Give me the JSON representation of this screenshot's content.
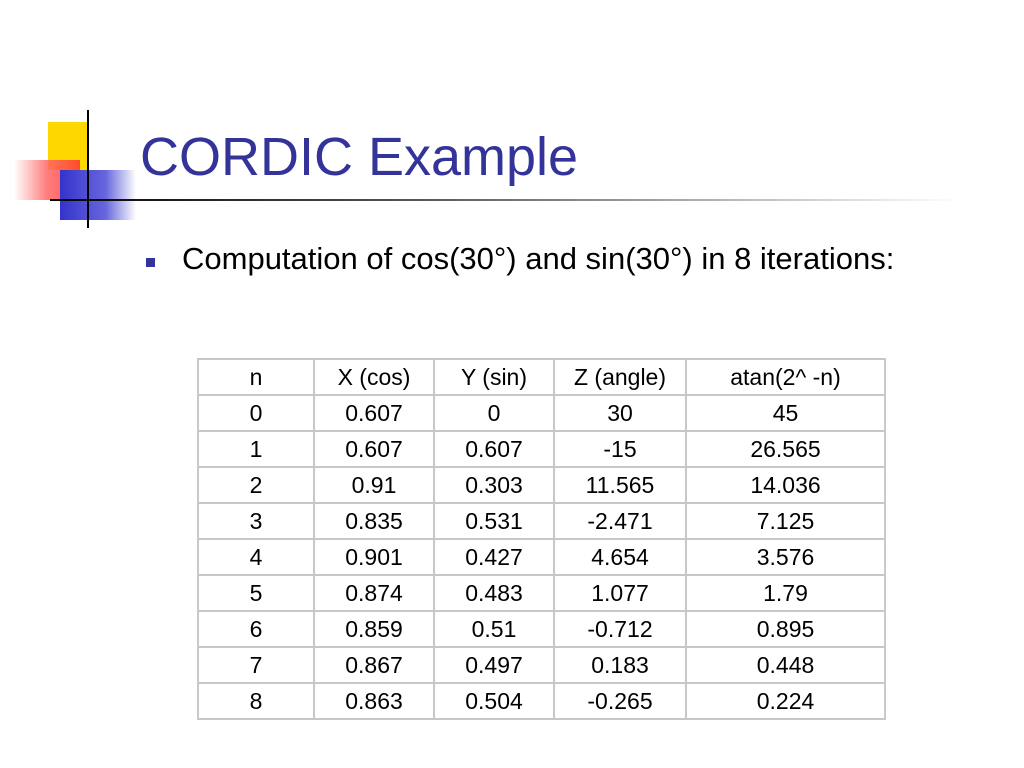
{
  "title": "CORDIC Example",
  "bullet": "Computation of cos(30°) and sin(30°) in 8 iterations:",
  "table": {
    "header": [
      "n",
      "X (cos)",
      "Y (sin)",
      "Z (angle)",
      "atan(2^ -n)"
    ],
    "rows": [
      [
        "0",
        "0.607",
        "0",
        "30",
        "45"
      ],
      [
        "1",
        "0.607",
        "0.607",
        "-15",
        "26.565"
      ],
      [
        "2",
        "0.91",
        "0.303",
        "11.565",
        "14.036"
      ],
      [
        "3",
        "0.835",
        "0.531",
        "-2.471",
        "7.125"
      ],
      [
        "4",
        "0.901",
        "0.427",
        "4.654",
        "3.576"
      ],
      [
        "5",
        "0.874",
        "0.483",
        "1.077",
        "1.79"
      ],
      [
        "6",
        "0.859",
        "0.51",
        "-0.712",
        "0.895"
      ],
      [
        "7",
        "0.867",
        "0.497",
        "0.183",
        "0.448"
      ],
      [
        "8",
        "0.863",
        "0.504",
        "-0.265",
        "0.224"
      ]
    ]
  }
}
